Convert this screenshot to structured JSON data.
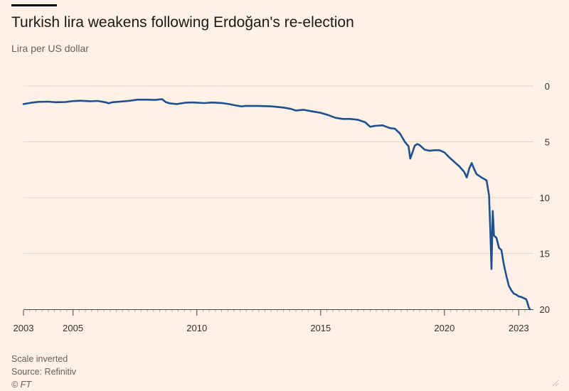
{
  "header": {
    "title": "Turkish lira weakens following Erdoğan's re-election",
    "subtitle": "Lira per US dollar"
  },
  "footer": {
    "note": "Scale inverted",
    "source": "Source: Refinitiv",
    "copyright": "© FT"
  },
  "colors": {
    "background": "#fff1e5",
    "line": "#1d4f91",
    "grid": "#e3d6c8",
    "text": "#33302e",
    "muted": "#66605c"
  },
  "chart_data": {
    "type": "line",
    "title": "Turkish lira weakens following Erdoğan's re-election",
    "ylabel": "Lira per US dollar",
    "xlabel": "",
    "y_inverted": true,
    "xlim": [
      2003.0,
      2023.45
    ],
    "ylim": [
      0,
      20
    ],
    "yticks": [
      0,
      5,
      10,
      15,
      20
    ],
    "ytick_labels": [
      "0",
      "5",
      "10",
      "15",
      "20"
    ],
    "xticks": [
      2003,
      2005,
      2010,
      2015,
      2020,
      2023
    ],
    "xtick_labels": [
      "2003",
      "2005",
      "2010",
      "2015",
      "2020",
      "2023"
    ],
    "grid": "horizontal",
    "series": [
      {
        "name": "Lira per US dollar",
        "x": [
          2003.0,
          2003.3,
          2003.6,
          2004.0,
          2004.3,
          2004.7,
          2005.0,
          2005.3,
          2005.7,
          2006.0,
          2006.3,
          2006.45,
          2006.6,
          2007.0,
          2007.3,
          2007.6,
          2008.0,
          2008.3,
          2008.6,
          2008.75,
          2008.9,
          2009.2,
          2009.5,
          2009.8,
          2010.0,
          2010.3,
          2010.6,
          2011.0,
          2011.3,
          2011.6,
          2011.8,
          2012.0,
          2012.5,
          2013.0,
          2013.5,
          2013.8,
          2014.0,
          2014.3,
          2014.6,
          2015.0,
          2015.3,
          2015.6,
          2015.9,
          2016.2,
          2016.5,
          2016.8,
          2017.0,
          2017.2,
          2017.5,
          2017.8,
          2018.0,
          2018.2,
          2018.4,
          2018.55,
          2018.62,
          2018.7,
          2018.8,
          2018.9,
          2019.0,
          2019.2,
          2019.4,
          2019.6,
          2019.8,
          2020.0,
          2020.2,
          2020.4,
          2020.6,
          2020.8,
          2020.9,
          2021.0,
          2021.1,
          2021.2,
          2021.3,
          2021.5,
          2021.7,
          2021.8,
          2021.85,
          2021.9,
          2021.95,
          2022.0,
          2022.1,
          2022.2,
          2022.3,
          2022.4,
          2022.5,
          2022.6,
          2022.7,
          2022.8,
          2022.9,
          2023.0,
          2023.1,
          2023.2,
          2023.3,
          2023.35,
          2023.4,
          2023.45
        ],
        "values": [
          1.62,
          1.5,
          1.42,
          1.4,
          1.45,
          1.43,
          1.35,
          1.32,
          1.36,
          1.34,
          1.45,
          1.55,
          1.45,
          1.38,
          1.32,
          1.22,
          1.22,
          1.25,
          1.18,
          1.45,
          1.55,
          1.62,
          1.5,
          1.47,
          1.49,
          1.53,
          1.48,
          1.52,
          1.62,
          1.75,
          1.82,
          1.78,
          1.79,
          1.82,
          1.93,
          2.05,
          2.2,
          2.13,
          2.25,
          2.4,
          2.6,
          2.85,
          2.95,
          2.95,
          3.02,
          3.25,
          3.65,
          3.57,
          3.52,
          3.77,
          3.82,
          4.25,
          5.0,
          5.4,
          6.5,
          6.0,
          5.35,
          5.2,
          5.3,
          5.7,
          5.8,
          5.75,
          5.75,
          5.95,
          6.4,
          6.8,
          7.2,
          7.7,
          8.2,
          7.4,
          6.9,
          7.45,
          7.9,
          8.2,
          8.45,
          9.8,
          12.8,
          16.4,
          11.2,
          13.4,
          13.6,
          14.5,
          14.7,
          16.0,
          17.0,
          17.9,
          18.3,
          18.6,
          18.7,
          18.85,
          18.9,
          19.0,
          19.1,
          19.4,
          19.8,
          20.0
        ]
      }
    ]
  }
}
